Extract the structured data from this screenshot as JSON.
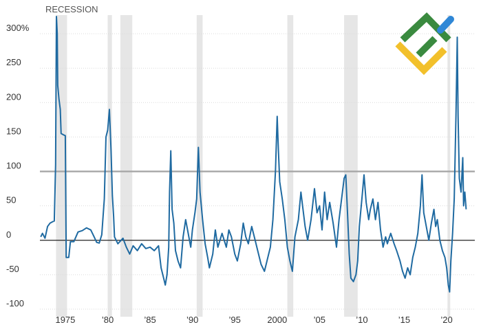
{
  "chart_data": {
    "type": "line",
    "title": "",
    "xlabel": "",
    "ylabel": "",
    "xlim": [
      1972.0,
      2023.0
    ],
    "ylim": [
      -105,
      335
    ],
    "y_ticks": [
      {
        "value": 300,
        "label": "300%"
      },
      {
        "value": 250,
        "label": "250"
      },
      {
        "value": 200,
        "label": "200"
      },
      {
        "value": 150,
        "label": "150"
      },
      {
        "value": 100,
        "label": "100"
      },
      {
        "value": 50,
        "label": "50"
      },
      {
        "value": 0,
        "label": "0"
      },
      {
        "value": -50,
        "label": "-50"
      },
      {
        "value": -100,
        "label": "-100"
      }
    ],
    "x_ticks": [
      {
        "value": 1975,
        "label": "1975"
      },
      {
        "value": 1980,
        "label": "’80"
      },
      {
        "value": 1985,
        "label": "’85"
      },
      {
        "value": 1990,
        "label": "’90"
      },
      {
        "value": 1995,
        "label": "’95"
      },
      {
        "value": 2000,
        "label": "2000"
      },
      {
        "value": 2005,
        "label": "’05"
      },
      {
        "value": 2010,
        "label": "’10"
      },
      {
        "value": 2015,
        "label": "’15"
      },
      {
        "value": 2020,
        "label": "’20"
      }
    ],
    "reference_line": {
      "y": 100,
      "color": "#a6a6a6"
    },
    "grid": true,
    "recession_label": "RECESSION",
    "recessions": [
      {
        "start": 1973.9,
        "end": 1975.2
      },
      {
        "start": 1980.0,
        "end": 1980.5
      },
      {
        "start": 1981.5,
        "end": 1982.9
      },
      {
        "start": 1990.5,
        "end": 1991.2
      },
      {
        "start": 2001.2,
        "end": 2001.9
      },
      {
        "start": 2007.9,
        "end": 2009.5
      },
      {
        "start": 2020.1,
        "end": 2020.4
      }
    ],
    "series": [
      {
        "color": "#1f6aa1",
        "points": [
          [
            1972.1,
            5
          ],
          [
            1972.3,
            10
          ],
          [
            1972.6,
            3
          ],
          [
            1972.9,
            20
          ],
          [
            1973.2,
            25
          ],
          [
            1973.5,
            27
          ],
          [
            1973.7,
            28
          ],
          [
            1973.85,
            110
          ],
          [
            1973.95,
            325
          ],
          [
            1974.05,
            300
          ],
          [
            1974.1,
            225
          ],
          [
            1974.25,
            205
          ],
          [
            1974.4,
            190
          ],
          [
            1974.5,
            155
          ],
          [
            1974.8,
            153
          ],
          [
            1975.0,
            152
          ],
          [
            1975.1,
            -25
          ],
          [
            1975.4,
            -25
          ],
          [
            1975.6,
            -2
          ],
          [
            1976.0,
            -2
          ],
          [
            1976.5,
            12
          ],
          [
            1977.0,
            14
          ],
          [
            1977.5,
            18
          ],
          [
            1978.0,
            15
          ],
          [
            1978.4,
            5
          ],
          [
            1978.7,
            -3
          ],
          [
            1979.0,
            -4
          ],
          [
            1979.3,
            8
          ],
          [
            1979.6,
            60
          ],
          [
            1979.8,
            150
          ],
          [
            1980.0,
            160
          ],
          [
            1980.2,
            190
          ],
          [
            1980.4,
            130
          ],
          [
            1980.55,
            65
          ],
          [
            1980.7,
            35
          ],
          [
            1980.8,
            5
          ],
          [
            1981.2,
            -5
          ],
          [
            1981.8,
            3
          ],
          [
            1982.2,
            -10
          ],
          [
            1982.6,
            -20
          ],
          [
            1983.0,
            -8
          ],
          [
            1983.5,
            -15
          ],
          [
            1984.0,
            -5
          ],
          [
            1984.5,
            -12
          ],
          [
            1985.0,
            -10
          ],
          [
            1985.5,
            -15
          ],
          [
            1986.0,
            -8
          ],
          [
            1986.3,
            -40
          ],
          [
            1986.6,
            -55
          ],
          [
            1986.8,
            -65
          ],
          [
            1987.0,
            -50
          ],
          [
            1987.2,
            -10
          ],
          [
            1987.3,
            70
          ],
          [
            1987.45,
            130
          ],
          [
            1987.6,
            45
          ],
          [
            1987.8,
            25
          ],
          [
            1988.0,
            -15
          ],
          [
            1988.3,
            -30
          ],
          [
            1988.6,
            -40
          ],
          [
            1988.9,
            5
          ],
          [
            1989.2,
            30
          ],
          [
            1989.5,
            10
          ],
          [
            1989.8,
            -10
          ],
          [
            1990.0,
            15
          ],
          [
            1990.3,
            40
          ],
          [
            1990.5,
            60
          ],
          [
            1990.7,
            135
          ],
          [
            1990.9,
            70
          ],
          [
            1991.2,
            30
          ],
          [
            1991.5,
            -5
          ],
          [
            1991.8,
            -25
          ],
          [
            1992.0,
            -40
          ],
          [
            1992.4,
            -20
          ],
          [
            1992.7,
            15
          ],
          [
            1993.0,
            -10
          ],
          [
            1993.5,
            10
          ],
          [
            1994.0,
            -10
          ],
          [
            1994.3,
            15
          ],
          [
            1994.6,
            5
          ],
          [
            1995.0,
            -20
          ],
          [
            1995.3,
            -30
          ],
          [
            1995.7,
            -5
          ],
          [
            1996.0,
            25
          ],
          [
            1996.3,
            5
          ],
          [
            1996.6,
            -5
          ],
          [
            1997.0,
            20
          ],
          [
            1997.4,
            0
          ],
          [
            1997.8,
            -20
          ],
          [
            1998.1,
            -35
          ],
          [
            1998.5,
            -45
          ],
          [
            1998.8,
            -30
          ],
          [
            1999.2,
            -10
          ],
          [
            1999.5,
            30
          ],
          [
            1999.8,
            100
          ],
          [
            2000.0,
            180
          ],
          [
            2000.15,
            130
          ],
          [
            2000.3,
            85
          ],
          [
            2000.6,
            60
          ],
          [
            2000.9,
            30
          ],
          [
            2001.2,
            -10
          ],
          [
            2001.5,
            -30
          ],
          [
            2001.8,
            -45
          ],
          [
            2002.1,
            5
          ],
          [
            2002.5,
            30
          ],
          [
            2002.8,
            70
          ],
          [
            2003.0,
            50
          ],
          [
            2003.3,
            20
          ],
          [
            2003.6,
            0
          ],
          [
            2004.0,
            30
          ],
          [
            2004.4,
            75
          ],
          [
            2004.7,
            40
          ],
          [
            2005.0,
            50
          ],
          [
            2005.3,
            15
          ],
          [
            2005.6,
            70
          ],
          [
            2005.9,
            30
          ],
          [
            2006.2,
            55
          ],
          [
            2006.6,
            25
          ],
          [
            2007.0,
            -10
          ],
          [
            2007.3,
            30
          ],
          [
            2007.6,
            60
          ],
          [
            2007.9,
            90
          ],
          [
            2008.1,
            95
          ],
          [
            2008.3,
            40
          ],
          [
            2008.5,
            -20
          ],
          [
            2008.7,
            -55
          ],
          [
            2009.0,
            -60
          ],
          [
            2009.3,
            -50
          ],
          [
            2009.5,
            -30
          ],
          [
            2009.7,
            20
          ],
          [
            2010.0,
            60
          ],
          [
            2010.25,
            95
          ],
          [
            2010.5,
            55
          ],
          [
            2010.8,
            30
          ],
          [
            2011.0,
            45
          ],
          [
            2011.3,
            60
          ],
          [
            2011.6,
            30
          ],
          [
            2011.9,
            55
          ],
          [
            2012.2,
            15
          ],
          [
            2012.5,
            -10
          ],
          [
            2012.8,
            5
          ],
          [
            2013.0,
            -5
          ],
          [
            2013.4,
            10
          ],
          [
            2013.8,
            -5
          ],
          [
            2014.1,
            -15
          ],
          [
            2014.5,
            -30
          ],
          [
            2014.8,
            -45
          ],
          [
            2015.1,
            -55
          ],
          [
            2015.4,
            -40
          ],
          [
            2015.7,
            -50
          ],
          [
            2016.0,
            -25
          ],
          [
            2016.3,
            -10
          ],
          [
            2016.6,
            10
          ],
          [
            2016.9,
            50
          ],
          [
            2017.1,
            95
          ],
          [
            2017.3,
            40
          ],
          [
            2017.6,
            20
          ],
          [
            2017.9,
            0
          ],
          [
            2018.2,
            25
          ],
          [
            2018.5,
            45
          ],
          [
            2018.7,
            20
          ],
          [
            2018.9,
            30
          ],
          [
            2019.2,
            0
          ],
          [
            2019.5,
            -15
          ],
          [
            2019.8,
            -25
          ],
          [
            2020.0,
            -40
          ],
          [
            2020.2,
            -65
          ],
          [
            2020.35,
            -75
          ],
          [
            2020.5,
            -30
          ],
          [
            2020.7,
            10
          ],
          [
            2020.9,
            60
          ],
          [
            2021.1,
            180
          ],
          [
            2021.25,
            295
          ],
          [
            2021.35,
            180
          ],
          [
            2021.5,
            90
          ],
          [
            2021.7,
            70
          ],
          [
            2021.9,
            120
          ],
          [
            2022.0,
            50
          ],
          [
            2022.15,
            70
          ],
          [
            2022.3,
            45
          ]
        ]
      }
    ]
  },
  "logo": {
    "name": "brand-logo",
    "colors": [
      "#3a8a3f",
      "#f2c02b",
      "#2f87d6"
    ]
  }
}
